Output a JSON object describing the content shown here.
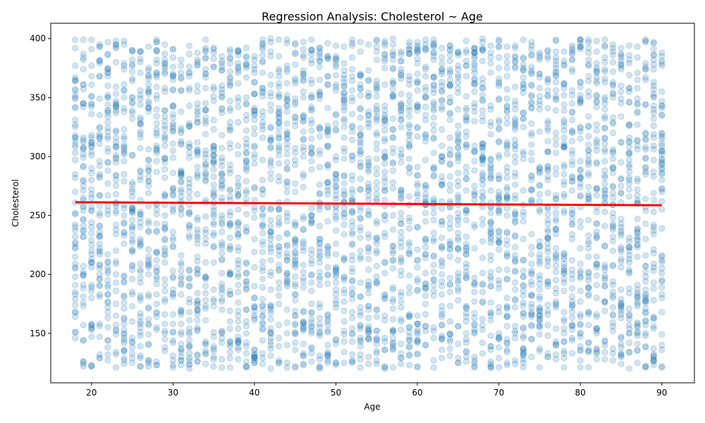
{
  "chart_data": {
    "type": "scatter",
    "title": "Regression Analysis: Cholesterol ~ Age",
    "xlabel": "Age",
    "ylabel": "Cholesterol",
    "xlim": [
      15,
      94
    ],
    "ylim": [
      108,
      413
    ],
    "x_ticks": [
      20,
      30,
      40,
      50,
      60,
      70,
      80,
      90
    ],
    "y_ticks": [
      150,
      200,
      250,
      300,
      350,
      400
    ],
    "x_tick_labels": [
      "20",
      "30",
      "40",
      "50",
      "60",
      "70",
      "80",
      "90"
    ],
    "y_tick_labels": [
      "150",
      "200",
      "250",
      "300",
      "350",
      "400"
    ],
    "grid": false,
    "legend": "none",
    "scatter": {
      "color": "#1f77b4",
      "alpha": 0.2,
      "age_min": 18,
      "age_max": 90,
      "cholesterol_min": 120,
      "cholesterol_max": 400,
      "points_per_age": 55
    },
    "regression_line": {
      "color": "#ff0000",
      "x": [
        18,
        90
      ],
      "y": [
        261.2,
        258.6
      ]
    }
  }
}
